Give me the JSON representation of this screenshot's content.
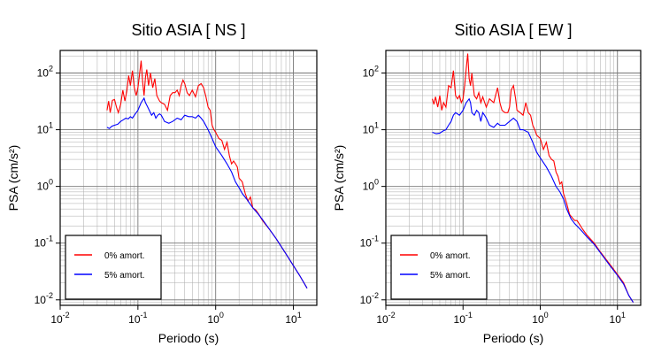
{
  "chart_data": [
    {
      "type": "line",
      "title": "Sitio ASIA [ NS ]",
      "xlabel": "Periodo (s)",
      "ylabel": "PSA (cm/s²)",
      "xscale": "log",
      "yscale": "log",
      "xlim": [
        0.01,
        20
      ],
      "ylim": [
        0.008,
        250
      ],
      "x_ticks": [
        0.01,
        0.1,
        1,
        10
      ],
      "y_ticks": [
        0.01,
        0.1,
        1,
        10,
        100
      ],
      "grid": true,
      "legend_position": "bottom-left",
      "series": [
        {
          "name": "0% amort.",
          "color": "#ff0000",
          "points": [
            [
              0.04,
              22
            ],
            [
              0.042,
              32
            ],
            [
              0.044,
              20
            ],
            [
              0.047,
              33
            ],
            [
              0.05,
              34
            ],
            [
              0.053,
              25
            ],
            [
              0.056,
              20
            ],
            [
              0.06,
              28
            ],
            [
              0.064,
              50
            ],
            [
              0.068,
              32
            ],
            [
              0.072,
              48
            ],
            [
              0.076,
              90
            ],
            [
              0.08,
              60
            ],
            [
              0.085,
              110
            ],
            [
              0.09,
              55
            ],
            [
              0.095,
              40
            ],
            [
              0.1,
              55
            ],
            [
              0.105,
              95
            ],
            [
              0.11,
              165
            ],
            [
              0.115,
              70
            ],
            [
              0.12,
              40
            ],
            [
              0.125,
              85
            ],
            [
              0.13,
              115
            ],
            [
              0.137,
              60
            ],
            [
              0.145,
              100
            ],
            [
              0.155,
              55
            ],
            [
              0.165,
              80
            ],
            [
              0.175,
              40
            ],
            [
              0.19,
              32
            ],
            [
              0.2,
              30
            ],
            [
              0.22,
              28
            ],
            [
              0.24,
              22
            ],
            [
              0.26,
              40
            ],
            [
              0.28,
              45
            ],
            [
              0.3,
              45
            ],
            [
              0.32,
              50
            ],
            [
              0.34,
              40
            ],
            [
              0.36,
              60
            ],
            [
              0.38,
              75
            ],
            [
              0.4,
              65
            ],
            [
              0.43,
              45
            ],
            [
              0.46,
              40
            ],
            [
              0.5,
              50
            ],
            [
              0.55,
              38
            ],
            [
              0.6,
              60
            ],
            [
              0.65,
              65
            ],
            [
              0.7,
              55
            ],
            [
              0.75,
              38
            ],
            [
              0.8,
              25
            ],
            [
              0.85,
              22
            ],
            [
              0.9,
              12
            ],
            [
              0.95,
              10
            ],
            [
              1.0,
              9
            ],
            [
              1.1,
              7
            ],
            [
              1.2,
              6.5
            ],
            [
              1.3,
              4.5
            ],
            [
              1.4,
              6
            ],
            [
              1.5,
              3.5
            ],
            [
              1.6,
              2.5
            ],
            [
              1.7,
              2.8
            ],
            [
              1.8,
              2.5
            ],
            [
              1.9,
              2.2
            ],
            [
              2.0,
              1.4
            ],
            [
              2.2,
              1.2
            ],
            [
              2.4,
              0.75
            ],
            [
              2.6,
              0.55
            ],
            [
              2.8,
              0.65
            ],
            [
              3.0,
              0.42
            ],
            [
              3.3,
              0.38
            ],
            [
              3.6,
              0.32
            ],
            [
              4.0,
              0.25
            ],
            [
              5,
              0.17
            ],
            [
              6,
              0.12
            ],
            [
              8,
              0.065
            ],
            [
              10,
              0.04
            ],
            [
              12,
              0.027
            ],
            [
              15,
              0.016
            ]
          ]
        },
        {
          "name": "5% amort.",
          "color": "#0000ff",
          "points": [
            [
              0.04,
              11
            ],
            [
              0.043,
              10.5
            ],
            [
              0.046,
              11.5
            ],
            [
              0.05,
              12
            ],
            [
              0.055,
              12.5
            ],
            [
              0.06,
              14
            ],
            [
              0.065,
              15
            ],
            [
              0.07,
              16
            ],
            [
              0.075,
              15.5
            ],
            [
              0.08,
              17
            ],
            [
              0.085,
              16
            ],
            [
              0.09,
              18
            ],
            [
              0.095,
              20
            ],
            [
              0.1,
              22
            ],
            [
              0.11,
              30
            ],
            [
              0.12,
              36
            ],
            [
              0.125,
              30
            ],
            [
              0.13,
              27
            ],
            [
              0.14,
              22
            ],
            [
              0.15,
              18
            ],
            [
              0.16,
              20
            ],
            [
              0.17,
              16
            ],
            [
              0.18,
              18
            ],
            [
              0.19,
              19
            ],
            [
              0.2,
              18
            ],
            [
              0.22,
              14
            ],
            [
              0.25,
              13
            ],
            [
              0.28,
              14
            ],
            [
              0.32,
              16
            ],
            [
              0.36,
              15
            ],
            [
              0.4,
              18
            ],
            [
              0.45,
              17
            ],
            [
              0.5,
              17
            ],
            [
              0.55,
              16
            ],
            [
              0.6,
              18
            ],
            [
              0.65,
              16
            ],
            [
              0.7,
              14
            ],
            [
              0.8,
              10
            ],
            [
              0.9,
              7
            ],
            [
              1.0,
              5
            ],
            [
              1.2,
              3.5
            ],
            [
              1.4,
              2.5
            ],
            [
              1.6,
              1.8
            ],
            [
              1.8,
              1.2
            ],
            [
              2.0,
              0.95
            ],
            [
              2.2,
              0.75
            ],
            [
              2.5,
              0.6
            ],
            [
              2.8,
              0.48
            ],
            [
              3.0,
              0.42
            ],
            [
              3.5,
              0.33
            ],
            [
              4.0,
              0.26
            ],
            [
              5,
              0.17
            ],
            [
              6,
              0.12
            ],
            [
              8,
              0.065
            ],
            [
              10,
              0.04
            ],
            [
              12,
              0.027
            ],
            [
              15,
              0.016
            ]
          ]
        }
      ]
    },
    {
      "type": "line",
      "title": "Sitio ASIA [ EW ]",
      "xlabel": "Periodo (s)",
      "ylabel": "PSA (cm/s²)",
      "xscale": "log",
      "yscale": "log",
      "xlim": [
        0.01,
        20
      ],
      "ylim": [
        0.008,
        250
      ],
      "x_ticks": [
        0.01,
        0.1,
        1,
        10
      ],
      "y_ticks": [
        0.01,
        0.1,
        1,
        10,
        100
      ],
      "grid": true,
      "legend_position": "bottom-left",
      "series": [
        {
          "name": "0% amort.",
          "color": "#ff0000",
          "points": [
            [
              0.04,
              35
            ],
            [
              0.042,
              28
            ],
            [
              0.044,
              38
            ],
            [
              0.047,
              25
            ],
            [
              0.05,
              40
            ],
            [
              0.053,
              22
            ],
            [
              0.056,
              30
            ],
            [
              0.06,
              25
            ],
            [
              0.065,
              60
            ],
            [
              0.07,
              55
            ],
            [
              0.075,
              110
            ],
            [
              0.08,
              40
            ],
            [
              0.085,
              35
            ],
            [
              0.09,
              40
            ],
            [
              0.095,
              30
            ],
            [
              0.1,
              35
            ],
            [
              0.105,
              60
            ],
            [
              0.11,
              120
            ],
            [
              0.115,
              220
            ],
            [
              0.12,
              80
            ],
            [
              0.125,
              60
            ],
            [
              0.13,
              100
            ],
            [
              0.14,
              40
            ],
            [
              0.15,
              35
            ],
            [
              0.16,
              45
            ],
            [
              0.17,
              30
            ],
            [
              0.18,
              38
            ],
            [
              0.2,
              25
            ],
            [
              0.22,
              35
            ],
            [
              0.25,
              30
            ],
            [
              0.28,
              55
            ],
            [
              0.3,
              30
            ],
            [
              0.32,
              22
            ],
            [
              0.35,
              20
            ],
            [
              0.38,
              20
            ],
            [
              0.4,
              25
            ],
            [
              0.42,
              50
            ],
            [
              0.45,
              60
            ],
            [
              0.48,
              35
            ],
            [
              0.5,
              22
            ],
            [
              0.55,
              20
            ],
            [
              0.6,
              18
            ],
            [
              0.65,
              30
            ],
            [
              0.7,
              20
            ],
            [
              0.75,
              18
            ],
            [
              0.8,
              12
            ],
            [
              0.85,
              10
            ],
            [
              0.9,
              8
            ],
            [
              1.0,
              7
            ],
            [
              1.1,
              4.5
            ],
            [
              1.2,
              6
            ],
            [
              1.3,
              3.5
            ],
            [
              1.4,
              3
            ],
            [
              1.5,
              2.8
            ],
            [
              1.6,
              1.8
            ],
            [
              1.7,
              1.5
            ],
            [
              1.8,
              1.1
            ],
            [
              1.9,
              1.2
            ],
            [
              2.0,
              0.75
            ],
            [
              2.2,
              0.5
            ],
            [
              2.4,
              0.32
            ],
            [
              2.6,
              0.28
            ],
            [
              2.8,
              0.25
            ],
            [
              3.0,
              0.25
            ],
            [
              3.5,
              0.18
            ],
            [
              4.0,
              0.14
            ],
            [
              5,
              0.1
            ],
            [
              6,
              0.07
            ],
            [
              8,
              0.042
            ],
            [
              10,
              0.028
            ],
            [
              12,
              0.02
            ],
            [
              14,
              0.012
            ],
            [
              16,
              0.009
            ]
          ]
        },
        {
          "name": "5% amort.",
          "color": "#0000ff",
          "points": [
            [
              0.04,
              9
            ],
            [
              0.045,
              8.5
            ],
            [
              0.05,
              8.7
            ],
            [
              0.055,
              9.5
            ],
            [
              0.06,
              10
            ],
            [
              0.065,
              12
            ],
            [
              0.07,
              14
            ],
            [
              0.075,
              18
            ],
            [
              0.08,
              20
            ],
            [
              0.09,
              18
            ],
            [
              0.1,
              22
            ],
            [
              0.11,
              30
            ],
            [
              0.12,
              35
            ],
            [
              0.125,
              30
            ],
            [
              0.13,
              20
            ],
            [
              0.14,
              18
            ],
            [
              0.15,
              22
            ],
            [
              0.16,
              20
            ],
            [
              0.17,
              14
            ],
            [
              0.18,
              20
            ],
            [
              0.19,
              18
            ],
            [
              0.2,
              16
            ],
            [
              0.22,
              12
            ],
            [
              0.25,
              11
            ],
            [
              0.28,
              13
            ],
            [
              0.3,
              12
            ],
            [
              0.35,
              12
            ],
            [
              0.4,
              14
            ],
            [
              0.45,
              16
            ],
            [
              0.5,
              14
            ],
            [
              0.55,
              10
            ],
            [
              0.6,
              10
            ],
            [
              0.7,
              9
            ],
            [
              0.8,
              6
            ],
            [
              0.9,
              4
            ],
            [
              1.0,
              3.2
            ],
            [
              1.2,
              2.2
            ],
            [
              1.4,
              1.5
            ],
            [
              1.6,
              1.0
            ],
            [
              1.8,
              0.8
            ],
            [
              2.0,
              0.6
            ],
            [
              2.2,
              0.4
            ],
            [
              2.5,
              0.27
            ],
            [
              2.8,
              0.22
            ],
            [
              3.0,
              0.2
            ],
            [
              3.5,
              0.16
            ],
            [
              4.0,
              0.13
            ],
            [
              5,
              0.095
            ],
            [
              6,
              0.068
            ],
            [
              8,
              0.04
            ],
            [
              10,
              0.027
            ],
            [
              12,
              0.019
            ],
            [
              14,
              0.012
            ],
            [
              16,
              0.009
            ]
          ]
        }
      ]
    }
  ]
}
